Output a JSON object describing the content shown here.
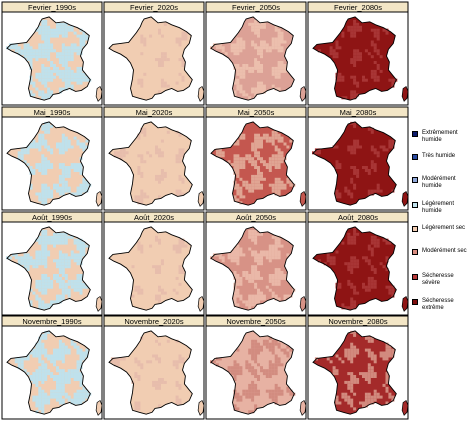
{
  "rows": [
    {
      "titles": [
        "Fevrier_1990s",
        "Fevrier_2020s",
        "Fevrier_2050s",
        "Fevrier_2080s"
      ]
    },
    {
      "titles": [
        "Mai_1990s",
        "Mai_2020s",
        "Mai_2050s",
        "Mai_2080s"
      ]
    },
    {
      "titles": [
        "Août_1990s",
        "Août_2020s",
        "Août_2050s",
        "Août_2080s"
      ]
    },
    {
      "titles": [
        "Novembre_1990s",
        "Novembre_2020s",
        "Novembre_2050s",
        "Novembre_2080s"
      ]
    }
  ],
  "panel_palettes": [
    [
      [
        "#f1cdb2",
        "#bfe1ec",
        0.6
      ],
      [
        "#f1cdb2",
        "#e7bdac",
        0.1
      ],
      [
        "#dca196",
        "#ecbfad",
        0.4
      ],
      [
        "#8e1414",
        "#a83535",
        0.25
      ]
    ],
    [
      [
        "#f1cdb2",
        "#bfe1ec",
        0.45
      ],
      [
        "#f1cdb2",
        "#e7bdac",
        0.15
      ],
      [
        "#c4574f",
        "#e0a593",
        0.45
      ],
      [
        "#8e1414",
        "#a83535",
        0.2
      ]
    ],
    [
      [
        "#f1cdb2",
        "#bfe1ec",
        0.55
      ],
      [
        "#f1cdb2",
        "#e7bdac",
        0.1
      ],
      [
        "#d79286",
        "#eab8a8",
        0.45
      ],
      [
        "#8e1414",
        "#a83535",
        0.25
      ]
    ],
    [
      [
        "#f1cdb2",
        "#bfe1ec",
        0.55
      ],
      [
        "#f1cdb2",
        "#e7bdac",
        0.1
      ],
      [
        "#e7b2a3",
        "#d28c80",
        0.4
      ],
      [
        "#a42a2a",
        "#d28a7e",
        0.35
      ]
    ]
  ],
  "legend": [
    {
      "label": "Extrêmement humide",
      "color": "#0c1a6b"
    },
    {
      "label": "Très humide",
      "color": "#2b4aa0"
    },
    {
      "label": "Modérément humide",
      "color": "#8fa7d9"
    },
    {
      "label": "Légèrement humide",
      "color": "#c1e3ee"
    },
    {
      "label": "Légèrement sec",
      "color": "#f2cdb3"
    },
    {
      "label": "Modérément sec",
      "color": "#d98c80"
    },
    {
      "label": "Sécheresse sévère",
      "color": "#b73a3a"
    },
    {
      "label": "Sécheresse extrême",
      "color": "#7e0d0d"
    }
  ]
}
